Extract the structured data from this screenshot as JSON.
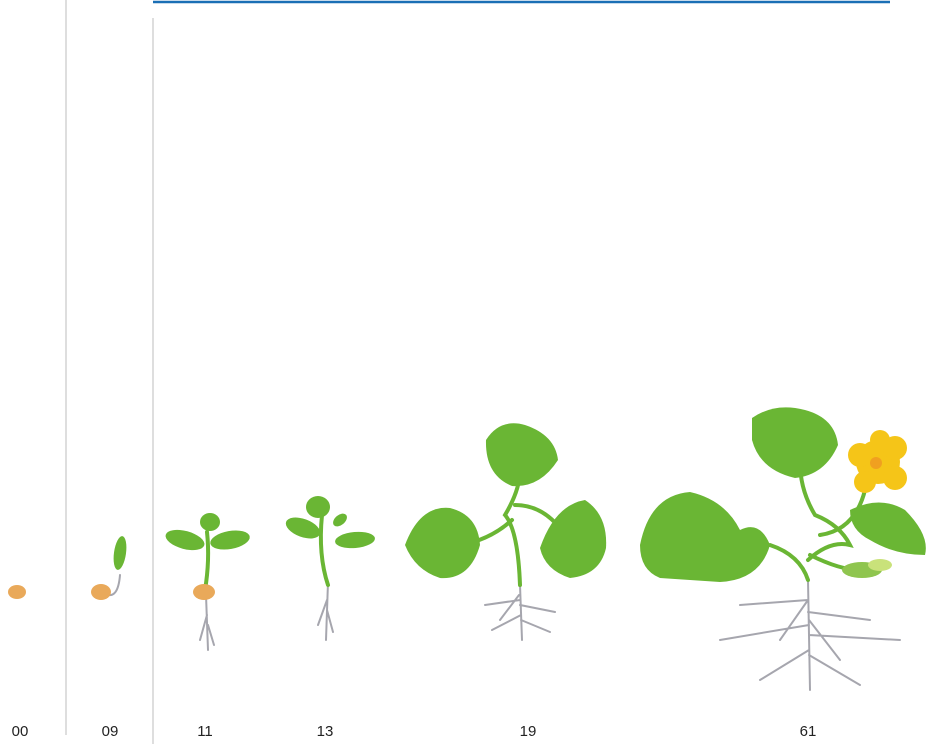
{
  "stages": [
    {
      "label": "00"
    },
    {
      "label": "09"
    },
    {
      "label": "11"
    },
    {
      "label": "13"
    },
    {
      "label": "19"
    },
    {
      "label": "61"
    }
  ]
}
